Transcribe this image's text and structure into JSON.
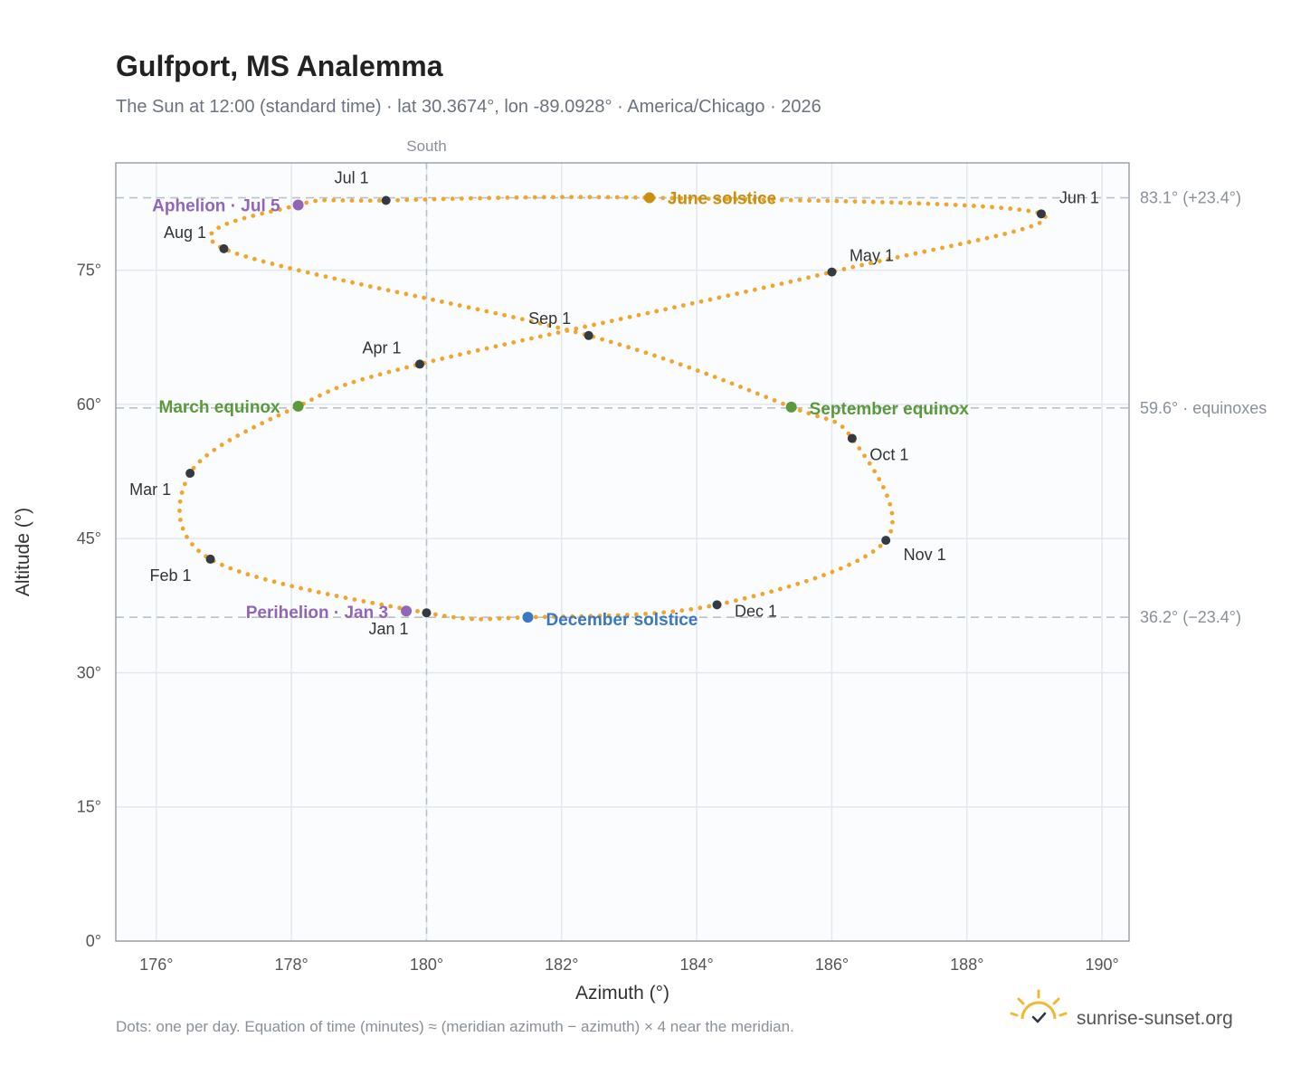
{
  "header": {
    "title": "Gulfport, MS Analemma",
    "subtitle": "The Sun at 12:00 (standard time) · lat 30.3674°, lon -89.0928° · America/Chicago · 2026"
  },
  "footer": {
    "note": "Dots: one per day. Equation of time (minutes) ≈ (meridian azimuth − azimuth) × 4 near the meridian.",
    "brand": "sunrise-sunset.org"
  },
  "colors": {
    "path": "#f2a52b",
    "month_marker": "#333a44",
    "solstice_june": "#c98f0e",
    "solstice_december": "#3a78c3",
    "equinox": "#5a9a3a",
    "apsis": "#9165b8",
    "reference_line": "#b8c2cc",
    "plot_background": "#fafcfe",
    "grid": "#e3e8ee"
  },
  "icons": {
    "brand_logo": "sun-check-icon"
  },
  "chart_data": {
    "type": "scatter",
    "xlabel": "Azimuth (°)",
    "ylabel": "Altitude (°)",
    "xlim": [
      175.4,
      190.4
    ],
    "ylim": [
      0,
      87
    ],
    "x_ticks": [
      {
        "value": 176,
        "label": "176°"
      },
      {
        "value": 178,
        "label": "178°"
      },
      {
        "value": 180,
        "label": "180°"
      },
      {
        "value": 182,
        "label": "182°"
      },
      {
        "value": 184,
        "label": "184°"
      },
      {
        "value": 186,
        "label": "186°"
      },
      {
        "value": 188,
        "label": "188°"
      },
      {
        "value": 190,
        "label": "190°"
      }
    ],
    "y_ticks": [
      {
        "value": 0,
        "label": "0°"
      },
      {
        "value": 15,
        "label": "15°"
      },
      {
        "value": 30,
        "label": "30°"
      },
      {
        "value": 45,
        "label": "45°"
      },
      {
        "value": 60,
        "label": "60°"
      },
      {
        "value": 75,
        "label": "75°"
      }
    ],
    "grid": true,
    "meridian": {
      "azimuth": 180,
      "label": "South"
    },
    "reference_lines": [
      {
        "altitude": 83.1,
        "label": "83.1° (+23.4°)"
      },
      {
        "altitude": 59.6,
        "label": "59.6° · equinoxes"
      },
      {
        "altitude": 36.2,
        "label": "36.2° (−23.4°)"
      }
    ],
    "path_anchors": [
      {
        "azimuth": 180.0,
        "altitude": 36.7
      },
      {
        "azimuth": 176.8,
        "altitude": 42.7
      },
      {
        "azimuth": 176.5,
        "altitude": 52.3
      },
      {
        "azimuth": 178.1,
        "altitude": 59.8
      },
      {
        "azimuth": 179.9,
        "altitude": 64.5
      },
      {
        "azimuth": 186.0,
        "altitude": 74.8
      },
      {
        "azimuth": 189.1,
        "altitude": 81.3
      },
      {
        "azimuth": 183.3,
        "altitude": 83.1
      },
      {
        "azimuth": 179.4,
        "altitude": 82.8
      },
      {
        "azimuth": 178.1,
        "altitude": 82.3
      },
      {
        "azimuth": 177.0,
        "altitude": 77.4
      },
      {
        "azimuth": 182.4,
        "altitude": 67.7
      },
      {
        "azimuth": 185.4,
        "altitude": 59.7
      },
      {
        "azimuth": 186.3,
        "altitude": 56.2
      },
      {
        "azimuth": 186.8,
        "altitude": 44.8
      },
      {
        "azimuth": 184.3,
        "altitude": 37.6
      },
      {
        "azimuth": 181.5,
        "altitude": 36.2
      }
    ],
    "month_markers": [
      {
        "label": "Jan 1",
        "azimuth": 180.0,
        "altitude": 36.7
      },
      {
        "label": "Feb 1",
        "azimuth": 176.8,
        "altitude": 42.7
      },
      {
        "label": "Mar 1",
        "azimuth": 176.5,
        "altitude": 52.3
      },
      {
        "label": "Apr 1",
        "azimuth": 179.9,
        "altitude": 64.5
      },
      {
        "label": "May 1",
        "azimuth": 186.0,
        "altitude": 74.8
      },
      {
        "label": "Jun 1",
        "azimuth": 189.1,
        "altitude": 81.3
      },
      {
        "label": "Jul 1",
        "azimuth": 179.4,
        "altitude": 82.8
      },
      {
        "label": "Aug 1",
        "azimuth": 177.0,
        "altitude": 77.4
      },
      {
        "label": "Sep 1",
        "azimuth": 182.4,
        "altitude": 67.7
      },
      {
        "label": "Oct 1",
        "azimuth": 186.3,
        "altitude": 56.2
      },
      {
        "label": "Nov 1",
        "azimuth": 186.8,
        "altitude": 44.8
      },
      {
        "label": "Dec 1",
        "azimuth": 184.3,
        "altitude": 37.6
      }
    ],
    "events": [
      {
        "label": "June solstice",
        "azimuth": 183.3,
        "altitude": 83.1,
        "color": "#c98f0e"
      },
      {
        "label": "December solstice",
        "azimuth": 181.5,
        "altitude": 36.2,
        "color": "#3a78c3"
      },
      {
        "label": "March equinox",
        "azimuth": 178.1,
        "altitude": 59.8,
        "color": "#5a9a3a"
      },
      {
        "label": "September equinox",
        "azimuth": 185.4,
        "altitude": 59.7,
        "color": "#5a9a3a"
      },
      {
        "label": "Aphelion · Jul 5",
        "azimuth": 178.1,
        "altitude": 82.3,
        "color": "#9165b8"
      },
      {
        "label": "Perihelion · Jan 3",
        "azimuth": 179.7,
        "altitude": 36.9,
        "color": "#9165b8"
      }
    ]
  }
}
